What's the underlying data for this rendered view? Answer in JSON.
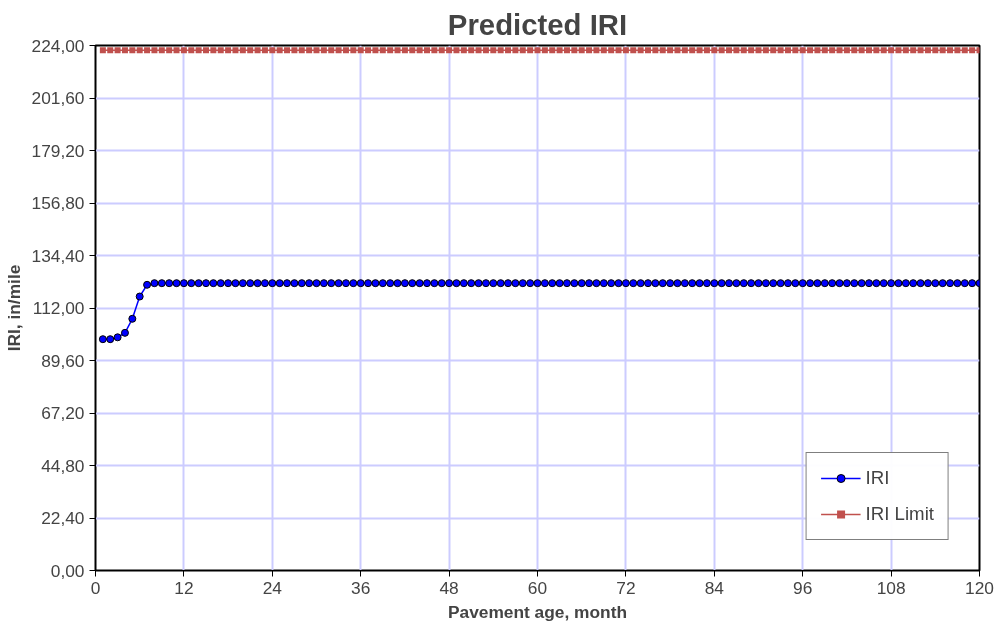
{
  "chart_data": {
    "type": "line",
    "title": "Predicted IRI",
    "xlabel": "Pavement age, month",
    "ylabel": "IRI, in/mile",
    "x": [
      1,
      2,
      3,
      4,
      5,
      6,
      7,
      8,
      9,
      10,
      11,
      12,
      13,
      14,
      15,
      16,
      17,
      18,
      19,
      20,
      21,
      22,
      23,
      24,
      25,
      26,
      27,
      28,
      29,
      30,
      31,
      32,
      33,
      34,
      35,
      36,
      37,
      38,
      39,
      40,
      41,
      42,
      43,
      44,
      45,
      46,
      47,
      48,
      49,
      50,
      51,
      52,
      53,
      54,
      55,
      56,
      57,
      58,
      59,
      60,
      61,
      62,
      63,
      64,
      65,
      66,
      67,
      68,
      69,
      70,
      71,
      72,
      73,
      74,
      75,
      76,
      77,
      78,
      79,
      80,
      81,
      82,
      83,
      84,
      85,
      86,
      87,
      88,
      89,
      90,
      91,
      92,
      93,
      94,
      95,
      96,
      97,
      98,
      99,
      100,
      101,
      102,
      103,
      104,
      105,
      106,
      107,
      108,
      109,
      110,
      111,
      112,
      113,
      114,
      115,
      116,
      117,
      118,
      119,
      120
    ],
    "series": [
      {
        "name": "IRI",
        "color": "#0000ff",
        "marker": "circle",
        "values": [
          98.7,
          98.7,
          99.5,
          101.4,
          107.4,
          116.9,
          121.9,
          122.6,
          122.6,
          122.6,
          122.6,
          122.6,
          122.6,
          122.6,
          122.6,
          122.6,
          122.6,
          122.6,
          122.6,
          122.6,
          122.6,
          122.6,
          122.6,
          122.6,
          122.6,
          122.6,
          122.6,
          122.6,
          122.6,
          122.6,
          122.6,
          122.6,
          122.6,
          122.6,
          122.6,
          122.6,
          122.6,
          122.6,
          122.6,
          122.6,
          122.6,
          122.6,
          122.6,
          122.6,
          122.6,
          122.6,
          122.6,
          122.6,
          122.6,
          122.6,
          122.6,
          122.6,
          122.6,
          122.6,
          122.6,
          122.6,
          122.6,
          122.6,
          122.6,
          122.6,
          122.6,
          122.6,
          122.6,
          122.6,
          122.6,
          122.6,
          122.6,
          122.6,
          122.6,
          122.6,
          122.6,
          122.6,
          122.6,
          122.6,
          122.6,
          122.6,
          122.6,
          122.6,
          122.6,
          122.6,
          122.6,
          122.6,
          122.6,
          122.6,
          122.6,
          122.6,
          122.6,
          122.6,
          122.6,
          122.6,
          122.6,
          122.6,
          122.6,
          122.6,
          122.6,
          122.6,
          122.6,
          122.6,
          122.6,
          122.6,
          122.6,
          122.6,
          122.6,
          122.6,
          122.6,
          122.6,
          122.6,
          122.6,
          122.6,
          122.6,
          122.6,
          122.6,
          122.6,
          122.6,
          122.6,
          122.6,
          122.6,
          122.6,
          122.6,
          122.6
        ]
      },
      {
        "name": "IRI Limit",
        "color": "#c0504d",
        "marker": "square",
        "values": [
          222,
          222,
          222,
          222,
          222,
          222,
          222,
          222,
          222,
          222,
          222,
          222,
          222,
          222,
          222,
          222,
          222,
          222,
          222,
          222,
          222,
          222,
          222,
          222,
          222,
          222,
          222,
          222,
          222,
          222,
          222,
          222,
          222,
          222,
          222,
          222,
          222,
          222,
          222,
          222,
          222,
          222,
          222,
          222,
          222,
          222,
          222,
          222,
          222,
          222,
          222,
          222,
          222,
          222,
          222,
          222,
          222,
          222,
          222,
          222,
          222,
          222,
          222,
          222,
          222,
          222,
          222,
          222,
          222,
          222,
          222,
          222,
          222,
          222,
          222,
          222,
          222,
          222,
          222,
          222,
          222,
          222,
          222,
          222,
          222,
          222,
          222,
          222,
          222,
          222,
          222,
          222,
          222,
          222,
          222,
          222,
          222,
          222,
          222,
          222,
          222,
          222,
          222,
          222,
          222,
          222,
          222,
          222,
          222,
          222,
          222,
          222,
          222,
          222,
          222,
          222,
          222,
          222,
          222,
          222
        ]
      }
    ],
    "xlim": [
      0,
      120
    ],
    "xticks": [
      0,
      12,
      24,
      36,
      48,
      60,
      72,
      84,
      96,
      108,
      120
    ],
    "ylim": [
      0,
      224
    ],
    "yticks": [
      {
        "value": 0,
        "label": "0,00"
      },
      {
        "value": 22.4,
        "label": "22,40"
      },
      {
        "value": 44.8,
        "label": "44,80"
      },
      {
        "value": 67.2,
        "label": "67,20"
      },
      {
        "value": 89.6,
        "label": "89,60"
      },
      {
        "value": 112,
        "label": "112,00"
      },
      {
        "value": 134.4,
        "label": "134,40"
      },
      {
        "value": 156.8,
        "label": "156,80"
      },
      {
        "value": 179.2,
        "label": "179,20"
      },
      {
        "value": 201.6,
        "label": "201,60"
      },
      {
        "value": 224,
        "label": "224,00"
      }
    ],
    "grid": true,
    "legend": "bottom right",
    "line_style": "solid"
  }
}
